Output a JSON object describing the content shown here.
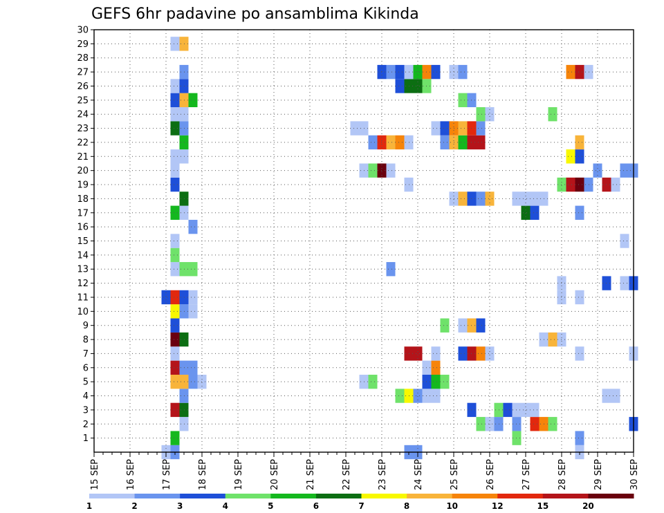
{
  "chart_data": {
    "type": "heatmap",
    "title": "GEFS 6hr padavine po ansamblima Kikinda",
    "xlabel": "",
    "ylabel": "",
    "x_ticks": [
      "15 SEP",
      "16 SEP",
      "17 SEP",
      "18 SEP",
      "19 SEP",
      "20 SEP",
      "21 SEP",
      "22 SEP",
      "23 SEP",
      "24 SEP",
      "25 SEP",
      "26 SEP",
      "27 SEP",
      "28 SEP",
      "29 SEP",
      "30 SEP"
    ],
    "xlim": [
      0,
      60
    ],
    "ylim": [
      0,
      30
    ],
    "y_ticks": [
      1,
      2,
      3,
      4,
      5,
      6,
      7,
      8,
      9,
      10,
      11,
      12,
      13,
      14,
      15,
      16,
      17,
      18,
      19,
      20,
      21,
      22,
      23,
      24,
      25,
      26,
      27,
      28,
      29,
      30
    ],
    "grid": true,
    "colorbar": {
      "labels": [
        "1",
        "2",
        "3",
        "4",
        "5",
        "6",
        "7",
        "8",
        "10",
        "12",
        "15",
        "20"
      ],
      "colors": [
        "#b2c6f6",
        "#6a94ee",
        "#1e4fd8",
        "#6fe26a",
        "#14b81e",
        "#0c6e12",
        "#f8f800",
        "#f8b43a",
        "#f6840a",
        "#e2280e",
        "#b4141a",
        "#6a000e"
      ]
    },
    "legend": "colorbar-bottom",
    "cells": [
      {
        "t": 8,
        "m": 0,
        "c": 1
      },
      {
        "t": 9,
        "m": 0,
        "c": 2
      },
      {
        "t": 35,
        "m": 0,
        "c": 2
      },
      {
        "t": 36,
        "m": 0,
        "c": 2
      },
      {
        "t": 54,
        "m": 0,
        "c": 1
      },
      {
        "t": 9,
        "m": 1,
        "c": 5
      },
      {
        "t": 54,
        "m": 1,
        "c": 2
      },
      {
        "t": 47,
        "m": 1,
        "c": 4
      },
      {
        "t": 10,
        "m": 2,
        "c": 1
      },
      {
        "t": 43,
        "m": 2,
        "c": 4
      },
      {
        "t": 44,
        "m": 2,
        "c": 1
      },
      {
        "t": 45,
        "m": 2,
        "c": 2
      },
      {
        "t": 47,
        "m": 2,
        "c": 2
      },
      {
        "t": 49,
        "m": 2,
        "c": 10
      },
      {
        "t": 50,
        "m": 2,
        "c": 9
      },
      {
        "t": 51,
        "m": 2,
        "c": 4
      },
      {
        "t": 60,
        "m": 2,
        "c": 3
      },
      {
        "t": 9,
        "m": 3,
        "c": 11
      },
      {
        "t": 10,
        "m": 3,
        "c": 6
      },
      {
        "t": 42,
        "m": 3,
        "c": 3
      },
      {
        "t": 45,
        "m": 3,
        "c": 4
      },
      {
        "t": 46,
        "m": 3,
        "c": 3
      },
      {
        "t": 47,
        "m": 3,
        "c": 1
      },
      {
        "t": 48,
        "m": 3,
        "c": 1
      },
      {
        "t": 49,
        "m": 3,
        "c": 1
      },
      {
        "t": 10,
        "m": 4,
        "c": 2
      },
      {
        "t": 34,
        "m": 4,
        "c": 4
      },
      {
        "t": 35,
        "m": 4,
        "c": 7
      },
      {
        "t": 36,
        "m": 4,
        "c": 2
      },
      {
        "t": 37,
        "m": 4,
        "c": 1
      },
      {
        "t": 38,
        "m": 4,
        "c": 1
      },
      {
        "t": 57,
        "m": 4,
        "c": 1
      },
      {
        "t": 58,
        "m": 4,
        "c": 1
      },
      {
        "t": 9,
        "m": 5,
        "c": 8
      },
      {
        "t": 10,
        "m": 5,
        "c": 8
      },
      {
        "t": 11,
        "m": 5,
        "c": 2
      },
      {
        "t": 12,
        "m": 5,
        "c": 1
      },
      {
        "t": 30,
        "m": 5,
        "c": 1
      },
      {
        "t": 31,
        "m": 5,
        "c": 4
      },
      {
        "t": 37,
        "m": 5,
        "c": 3
      },
      {
        "t": 38,
        "m": 5,
        "c": 5
      },
      {
        "t": 39,
        "m": 5,
        "c": 4
      },
      {
        "t": 9,
        "m": 6,
        "c": 11
      },
      {
        "t": 10,
        "m": 6,
        "c": 2
      },
      {
        "t": 11,
        "m": 6,
        "c": 2
      },
      {
        "t": 37,
        "m": 6,
        "c": 1
      },
      {
        "t": 38,
        "m": 6,
        "c": 9
      },
      {
        "t": 9,
        "m": 7,
        "c": 1
      },
      {
        "t": 35,
        "m": 7,
        "c": 11
      },
      {
        "t": 36,
        "m": 7,
        "c": 11
      },
      {
        "t": 38,
        "m": 7,
        "c": 1
      },
      {
        "t": 41,
        "m": 7,
        "c": 3
      },
      {
        "t": 42,
        "m": 7,
        "c": 11
      },
      {
        "t": 43,
        "m": 7,
        "c": 9
      },
      {
        "t": 44,
        "m": 7,
        "c": 1
      },
      {
        "t": 54,
        "m": 7,
        "c": 1
      },
      {
        "t": 60,
        "m": 7,
        "c": 1
      },
      {
        "t": 9,
        "m": 8,
        "c": 12
      },
      {
        "t": 10,
        "m": 8,
        "c": 6
      },
      {
        "t": 50,
        "m": 8,
        "c": 1
      },
      {
        "t": 51,
        "m": 8,
        "c": 8
      },
      {
        "t": 52,
        "m": 8,
        "c": 1
      },
      {
        "t": 9,
        "m": 9,
        "c": 3
      },
      {
        "t": 39,
        "m": 9,
        "c": 4
      },
      {
        "t": 41,
        "m": 9,
        "c": 1
      },
      {
        "t": 42,
        "m": 9,
        "c": 8
      },
      {
        "t": 43,
        "m": 9,
        "c": 3
      },
      {
        "t": 9,
        "m": 10,
        "c": 7
      },
      {
        "t": 10,
        "m": 10,
        "c": 2
      },
      {
        "t": 11,
        "m": 10,
        "c": 1
      },
      {
        "t": 8,
        "m": 11,
        "c": 3
      },
      {
        "t": 9,
        "m": 11,
        "c": 10
      },
      {
        "t": 10,
        "m": 11,
        "c": 3
      },
      {
        "t": 11,
        "m": 11,
        "c": 1
      },
      {
        "t": 52,
        "m": 11,
        "c": 1
      },
      {
        "t": 54,
        "m": 11,
        "c": 1
      },
      {
        "t": 52,
        "m": 12,
        "c": 1
      },
      {
        "t": 57,
        "m": 12,
        "c": 3
      },
      {
        "t": 59,
        "m": 12,
        "c": 1
      },
      {
        "t": 60,
        "m": 12,
        "c": 3
      },
      {
        "t": 9,
        "m": 13,
        "c": 1
      },
      {
        "t": 10,
        "m": 13,
        "c": 4
      },
      {
        "t": 11,
        "m": 13,
        "c": 4
      },
      {
        "t": 33,
        "m": 13,
        "c": 2
      },
      {
        "t": 9,
        "m": 14,
        "c": 4
      },
      {
        "t": 9,
        "m": 15,
        "c": 1
      },
      {
        "t": 59,
        "m": 15,
        "c": 1
      },
      {
        "t": 11,
        "m": 16,
        "c": 2
      },
      {
        "t": 9,
        "m": 17,
        "c": 5
      },
      {
        "t": 10,
        "m": 17,
        "c": 1
      },
      {
        "t": 48,
        "m": 17,
        "c": 6
      },
      {
        "t": 49,
        "m": 17,
        "c": 3
      },
      {
        "t": 54,
        "m": 17,
        "c": 2
      },
      {
        "t": 10,
        "m": 18,
        "c": 6
      },
      {
        "t": 40,
        "m": 18,
        "c": 1
      },
      {
        "t": 41,
        "m": 18,
        "c": 8
      },
      {
        "t": 42,
        "m": 18,
        "c": 3
      },
      {
        "t": 43,
        "m": 18,
        "c": 2
      },
      {
        "t": 44,
        "m": 18,
        "c": 8
      },
      {
        "t": 47,
        "m": 18,
        "c": 1
      },
      {
        "t": 48,
        "m": 18,
        "c": 1
      },
      {
        "t": 49,
        "m": 18,
        "c": 1
      },
      {
        "t": 50,
        "m": 18,
        "c": 1
      },
      {
        "t": 9,
        "m": 19,
        "c": 3
      },
      {
        "t": 35,
        "m": 19,
        "c": 1
      },
      {
        "t": 52,
        "m": 19,
        "c": 4
      },
      {
        "t": 53,
        "m": 19,
        "c": 11
      },
      {
        "t": 54,
        "m": 19,
        "c": 12
      },
      {
        "t": 55,
        "m": 19,
        "c": 2
      },
      {
        "t": 57,
        "m": 19,
        "c": 11
      },
      {
        "t": 58,
        "m": 19,
        "c": 1
      },
      {
        "t": 9,
        "m": 20,
        "c": 1
      },
      {
        "t": 30,
        "m": 20,
        "c": 1
      },
      {
        "t": 31,
        "m": 20,
        "c": 4
      },
      {
        "t": 32,
        "m": 20,
        "c": 12
      },
      {
        "t": 33,
        "m": 20,
        "c": 1
      },
      {
        "t": 56,
        "m": 20,
        "c": 2
      },
      {
        "t": 59,
        "m": 20,
        "c": 2
      },
      {
        "t": 60,
        "m": 20,
        "c": 2
      },
      {
        "t": 9,
        "m": 21,
        "c": 1
      },
      {
        "t": 10,
        "m": 21,
        "c": 1
      },
      {
        "t": 53,
        "m": 21,
        "c": 7
      },
      {
        "t": 54,
        "m": 21,
        "c": 3
      },
      {
        "t": 10,
        "m": 22,
        "c": 5
      },
      {
        "t": 31,
        "m": 22,
        "c": 2
      },
      {
        "t": 32,
        "m": 22,
        "c": 10
      },
      {
        "t": 33,
        "m": 22,
        "c": 8
      },
      {
        "t": 34,
        "m": 22,
        "c": 9
      },
      {
        "t": 35,
        "m": 22,
        "c": 1
      },
      {
        "t": 39,
        "m": 22,
        "c": 2
      },
      {
        "t": 40,
        "m": 22,
        "c": 8
      },
      {
        "t": 41,
        "m": 22,
        "c": 5
      },
      {
        "t": 42,
        "m": 22,
        "c": 11
      },
      {
        "t": 43,
        "m": 22,
        "c": 11
      },
      {
        "t": 54,
        "m": 22,
        "c": 8
      },
      {
        "t": 9,
        "m": 23,
        "c": 6
      },
      {
        "t": 10,
        "m": 23,
        "c": 2
      },
      {
        "t": 29,
        "m": 23,
        "c": 1
      },
      {
        "t": 30,
        "m": 23,
        "c": 1
      },
      {
        "t": 38,
        "m": 23,
        "c": 1
      },
      {
        "t": 39,
        "m": 23,
        "c": 3
      },
      {
        "t": 40,
        "m": 23,
        "c": 9
      },
      {
        "t": 41,
        "m": 23,
        "c": 8
      },
      {
        "t": 42,
        "m": 23,
        "c": 10
      },
      {
        "t": 43,
        "m": 23,
        "c": 2
      },
      {
        "t": 9,
        "m": 24,
        "c": 1
      },
      {
        "t": 10,
        "m": 24,
        "c": 1
      },
      {
        "t": 43,
        "m": 24,
        "c": 4
      },
      {
        "t": 44,
        "m": 24,
        "c": 1
      },
      {
        "t": 51,
        "m": 24,
        "c": 4
      },
      {
        "t": 9,
        "m": 25,
        "c": 3
      },
      {
        "t": 10,
        "m": 25,
        "c": 8
      },
      {
        "t": 11,
        "m": 25,
        "c": 5
      },
      {
        "t": 41,
        "m": 25,
        "c": 4
      },
      {
        "t": 42,
        "m": 25,
        "c": 2
      },
      {
        "t": 9,
        "m": 26,
        "c": 1
      },
      {
        "t": 10,
        "m": 26,
        "c": 3
      },
      {
        "t": 34,
        "m": 26,
        "c": 3
      },
      {
        "t": 35,
        "m": 26,
        "c": 6
      },
      {
        "t": 36,
        "m": 26,
        "c": 6
      },
      {
        "t": 37,
        "m": 26,
        "c": 4
      },
      {
        "t": 10,
        "m": 27,
        "c": 2
      },
      {
        "t": 32,
        "m": 27,
        "c": 3
      },
      {
        "t": 33,
        "m": 27,
        "c": 2
      },
      {
        "t": 34,
        "m": 27,
        "c": 3
      },
      {
        "t": 35,
        "m": 27,
        "c": 1
      },
      {
        "t": 36,
        "m": 27,
        "c": 5
      },
      {
        "t": 37,
        "m": 27,
        "c": 9
      },
      {
        "t": 38,
        "m": 27,
        "c": 3
      },
      {
        "t": 40,
        "m": 27,
        "c": 1
      },
      {
        "t": 41,
        "m": 27,
        "c": 2
      },
      {
        "t": 53,
        "m": 27,
        "c": 9
      },
      {
        "t": 54,
        "m": 27,
        "c": 11
      },
      {
        "t": 55,
        "m": 27,
        "c": 1
      },
      {
        "t": 9,
        "m": 29,
        "c": 1
      },
      {
        "t": 10,
        "m": 29,
        "c": 8
      }
    ]
  }
}
